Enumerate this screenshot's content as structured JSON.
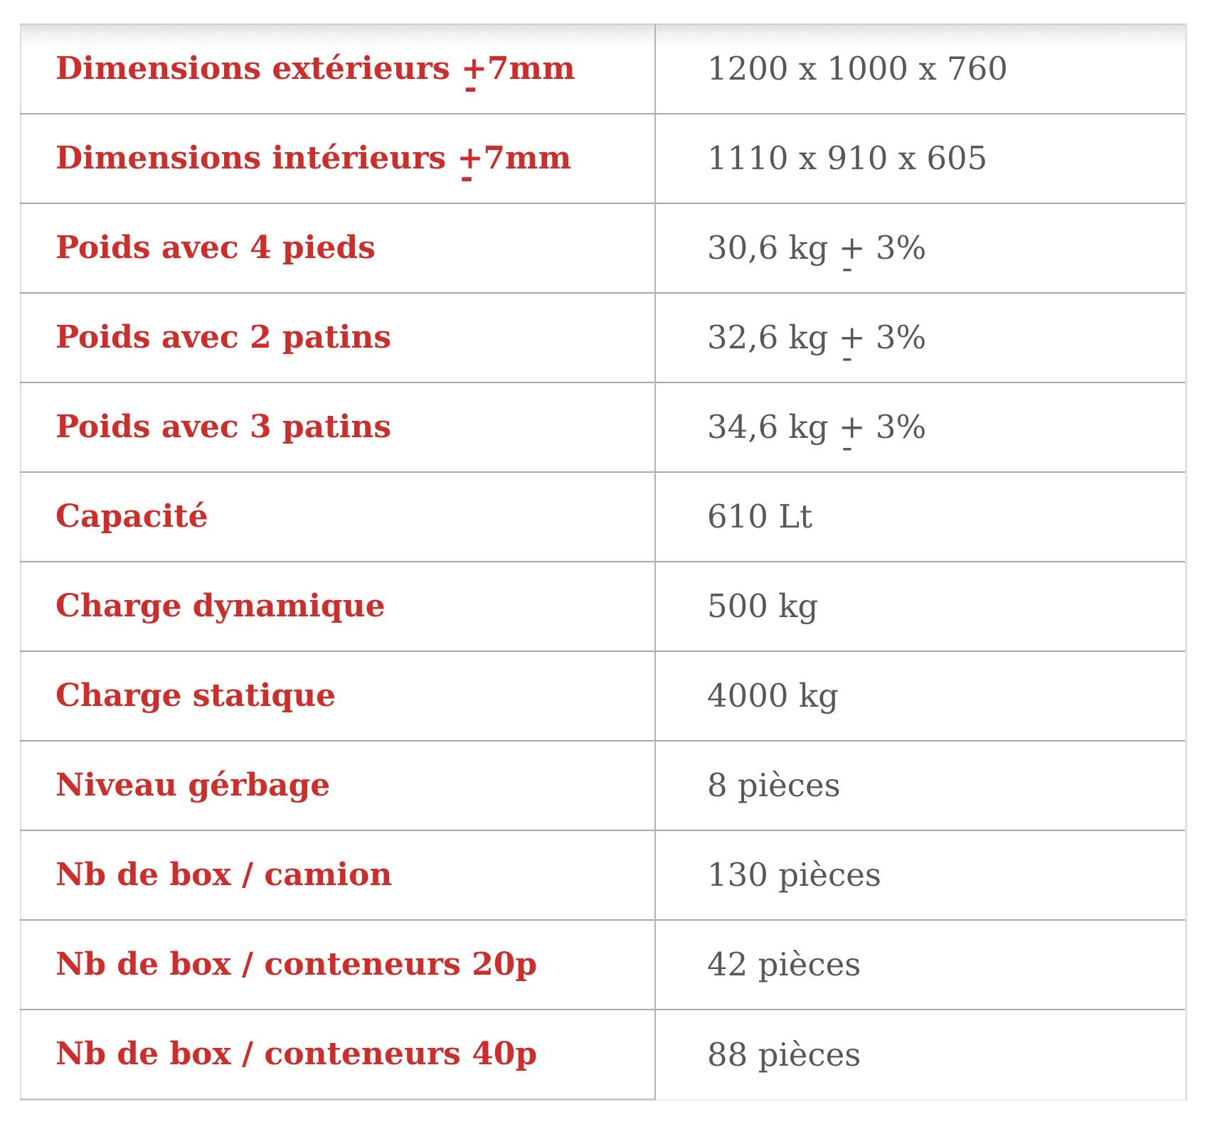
{
  "table": {
    "rows": [
      {
        "label": "Dimensions extérieurs ±7mm",
        "value": "1200 x 1000 x 760"
      },
      {
        "label": "Dimensions intérieurs ±7mm",
        "value": "1110 x 910 x 605"
      },
      {
        "label": "Poids avec 4 pieds",
        "value": "30,6 kg ± 3%"
      },
      {
        "label": "Poids avec 2 patins",
        "value": "32,6 kg ± 3%"
      },
      {
        "label": "Poids avec 3 patins",
        "value": "34,6 kg ± 3%"
      },
      {
        "label": "Capacité",
        "value": "610 Lt"
      },
      {
        "label": "Charge dynamique",
        "value": "500 kg"
      },
      {
        "label": "Charge statique",
        "value": "4000 kg"
      },
      {
        "label": "Niveau gérbage",
        "value": "8 pièces"
      },
      {
        "label": "Nb de box / camion",
        "value": "130 pièces"
      },
      {
        "label": "Nb de box / conteneurs 20p",
        "value": "42 pièces"
      },
      {
        "label": "Nb de box / conteneurs 40p",
        "value": "88 pièces"
      }
    ],
    "colors": {
      "label_red": "#cb2e2b",
      "value_gray": "#58585a",
      "row_border_gray": "#a9a9a9",
      "column_divider_gray": "#b2b2b2",
      "outer_border_gray": "#dedede",
      "top_gradient_gray": "#dedede"
    }
  }
}
